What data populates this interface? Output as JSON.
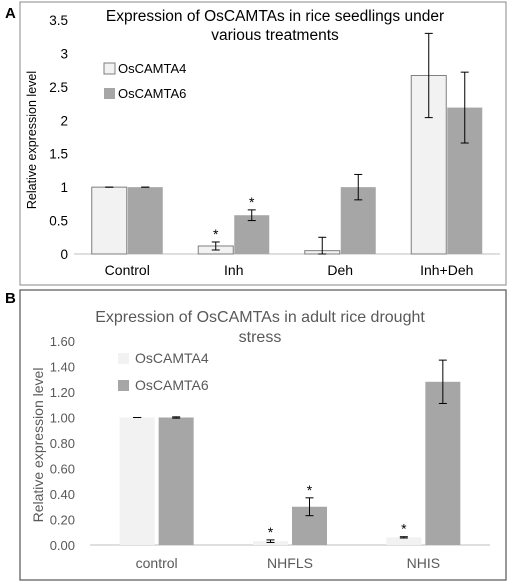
{
  "panel_labels": [
    "A",
    "B"
  ],
  "colors": {
    "oscamta4_a": "#f2f2f2",
    "oscamta4_a_border": "#7f7f7f",
    "oscamta6_a": "#a6a6a6",
    "oscamta4_b": "#f2f2f2",
    "oscamta6_b": "#a6a6a6",
    "axis": "#bfbfbf",
    "text": "#000000",
    "title_b": "#595959",
    "tick_b": "#595959"
  },
  "chart_data": [
    {
      "type": "bar",
      "title_lines": [
        "Expression of OsCAMTAs in rice seedlings under",
        "various treatments"
      ],
      "ylabel": "Relative expression level",
      "xlabel": "",
      "categories": [
        "Control",
        "Inh",
        "Deh",
        "Inh+Deh"
      ],
      "ylim": [
        0,
        3.5
      ],
      "yticks": [
        "0",
        "0.5",
        "1",
        "1.5",
        "2",
        "2.5",
        "3",
        "3.5"
      ],
      "legend_position": "top-left",
      "grid": false,
      "series": [
        {
          "name": "OsCAMTA4",
          "values": [
            1.0,
            0.12,
            0.05,
            2.67
          ],
          "errors": [
            0.0,
            0.06,
            0.2,
            0.63
          ],
          "significant": [
            false,
            true,
            false,
            false
          ]
        },
        {
          "name": "OsCAMTA6",
          "values": [
            1.0,
            0.58,
            1.0,
            2.19
          ],
          "errors": [
            0.0,
            0.08,
            0.19,
            0.53
          ],
          "significant": [
            false,
            true,
            false,
            false
          ]
        }
      ]
    },
    {
      "type": "bar",
      "title_lines": [
        "Expression of OsCAMTAs in adult rice drought",
        "stress"
      ],
      "ylabel": "Relative expression level",
      "xlabel": "",
      "categories": [
        "control",
        "NHFLS",
        "NHIS"
      ],
      "ylim": [
        0,
        1.6
      ],
      "yticks": [
        "0.00",
        "0.20",
        "0.40",
        "0.60",
        "0.80",
        "1.00",
        "1.20",
        "1.40",
        "1.60"
      ],
      "legend_position": "top-left",
      "grid": false,
      "series": [
        {
          "name": "OsCAMTA4",
          "values": [
            1.0,
            0.03,
            0.06
          ],
          "errors": [
            0.0,
            0.01,
            0.005
          ],
          "significant": [
            false,
            true,
            true
          ]
        },
        {
          "name": "OsCAMTA6",
          "values": [
            1.0,
            0.3,
            1.28
          ],
          "errors": [
            0.005,
            0.07,
            0.17
          ],
          "significant": [
            false,
            true,
            false
          ]
        }
      ]
    }
  ],
  "asterisk": "*"
}
